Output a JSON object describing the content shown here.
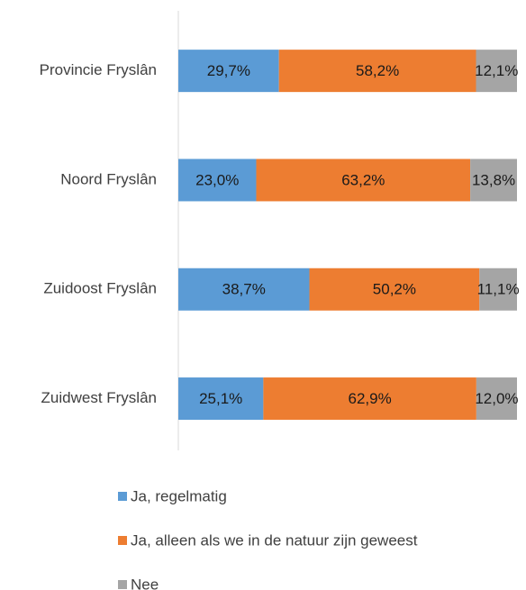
{
  "chart_data": {
    "type": "stacked-bar-horizontal",
    "categories": [
      "Provincie Fryslân",
      "Noord Fryslân",
      "Zuidoost Fryslân",
      "Zuidwest Fryslân"
    ],
    "series": [
      {
        "name": "Ja, regelmatig",
        "color": "#5b9bd5",
        "values": [
          29.7,
          23.0,
          38.7,
          25.1
        ],
        "value_labels": [
          "29,7%",
          "23,0%",
          "38,7%",
          "25,1%"
        ]
      },
      {
        "name": "Ja, alleen als we in de natuur zijn geweest",
        "color": "#ed7d31",
        "values": [
          58.2,
          63.2,
          50.2,
          62.9
        ],
        "value_labels": [
          "58,2%",
          "63,2%",
          "50,2%",
          "62,9%"
        ]
      },
      {
        "name": "Nee",
        "color": "#a5a5a5",
        "values": [
          12.1,
          13.8,
          11.1,
          12.0
        ],
        "value_labels": [
          "12,1%",
          "13,8%",
          "11,1%",
          "12,0%"
        ]
      }
    ],
    "legend": "bottom"
  }
}
